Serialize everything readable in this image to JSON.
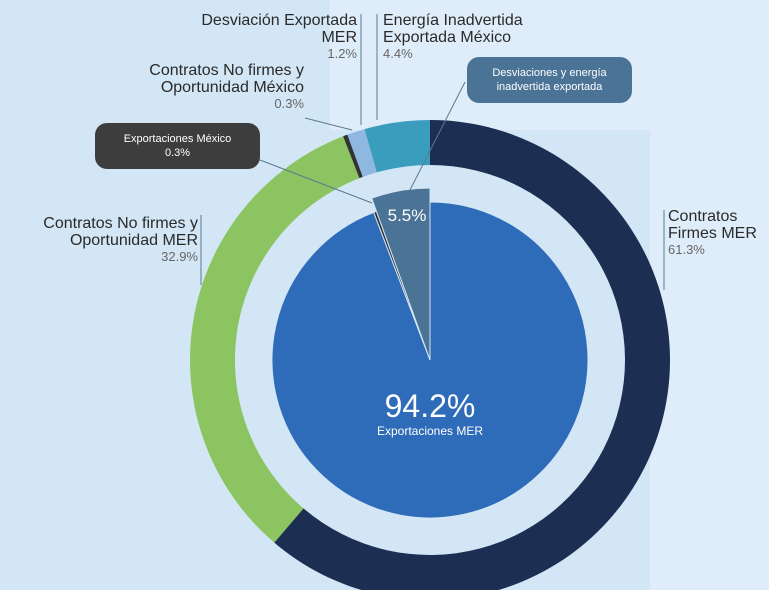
{
  "chart_data": {
    "type": "sunburst",
    "rings": [
      {
        "categories": [
          "Contratos Firmes MER",
          "Contratos No firmes y Oportunidad MER",
          "Contratos No firmes y Oportunidad México",
          "Desviación Exportada MER",
          "Energía Inadvertida Exportada México"
        ],
        "values": [
          61.3,
          32.9,
          0.3,
          1.2,
          4.4
        ],
        "value_labels": [
          "61.3%",
          "32.9%",
          "0.3%",
          "1.2%",
          "4.4%"
        ],
        "colors": [
          "#1c2f52",
          "#8cc462",
          "#333333",
          "#8fb8e0",
          "#3a9dbd"
        ]
      },
      {
        "categories": [
          "Exportaciones MER",
          "Exportaciones México",
          "Desviaciones y energía inadvertida exportada"
        ],
        "values": [
          94.2,
          0.3,
          5.5
        ],
        "value_labels": [
          "94.2%",
          "0.3%",
          "5.5%"
        ],
        "colors": [
          "#2e6bb8",
          "#333333",
          "#4a7396"
        ]
      }
    ]
  }
}
